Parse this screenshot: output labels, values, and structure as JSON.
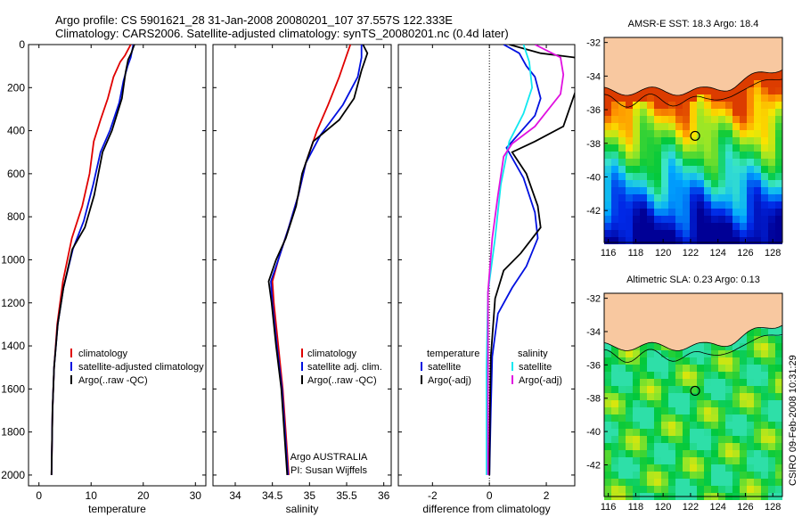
{
  "header": {
    "line1": "Argo profile: CS 5901621_28 31-Jan-2008 20080201_107 37.557S 122.333E",
    "line2": "Climatology: CARS2006. Satellite-adjusted climatology: synTS_20080201.nc (0.4d later)"
  },
  "credit": "CSIRO 09-Feb-2008 10:31:29",
  "colors": {
    "climatology": "#e00000",
    "satellite": "#0010e0",
    "argo": "#000000",
    "cyan": "#10e8f0",
    "magenta": "#e010e0",
    "land": "#f8c8a0"
  },
  "chart_data": [
    {
      "type": "line",
      "id": "temperature",
      "xlabel": "temperature",
      "ylabel": "",
      "xlim": [
        -2,
        32
      ],
      "ylim": [
        2050,
        0
      ],
      "y_inverted": true,
      "xticks": [
        0,
        10,
        20,
        30
      ],
      "yticks": [
        0,
        200,
        400,
        600,
        800,
        1000,
        1200,
        1400,
        1600,
        1800,
        2000
      ],
      "series": [
        {
          "name": "climatology",
          "color": "#e00000",
          "points": [
            [
              17.6,
              0
            ],
            [
              16.5,
              50
            ],
            [
              15.6,
              80
            ],
            [
              14.3,
              150
            ],
            [
              13.2,
              250
            ],
            [
              11.8,
              350
            ],
            [
              10.5,
              450
            ],
            [
              9.7,
              600
            ],
            [
              8.3,
              750
            ],
            [
              6.3,
              900
            ],
            [
              4.6,
              1100
            ],
            [
              3.5,
              1300
            ],
            [
              2.9,
              1500
            ],
            [
              2.6,
              1700
            ],
            [
              2.4,
              2000
            ]
          ]
        },
        {
          "name": "satellite-adjusted climatology",
          "color": "#0010e0",
          "points": [
            [
              18.1,
              0
            ],
            [
              17.6,
              60
            ],
            [
              17.0,
              100
            ],
            [
              16.2,
              170
            ],
            [
              15.4,
              270
            ],
            [
              13.6,
              400
            ],
            [
              11.8,
              500
            ],
            [
              10.4,
              650
            ],
            [
              8.6,
              820
            ],
            [
              6.5,
              950
            ],
            [
              4.7,
              1130
            ],
            [
              3.6,
              1300
            ],
            [
              2.9,
              1500
            ],
            [
              2.6,
              1700
            ],
            [
              2.4,
              2000
            ]
          ]
        },
        {
          "name": "Argo(..raw -QC)",
          "color": "#000000",
          "points": [
            [
              18.3,
              0
            ],
            [
              17.7,
              40
            ],
            [
              17.1,
              70
            ],
            [
              16.6,
              130
            ],
            [
              15.9,
              250
            ],
            [
              14.0,
              400
            ],
            [
              12.2,
              500
            ],
            [
              10.6,
              700
            ],
            [
              8.8,
              850
            ],
            [
              6.4,
              950
            ],
            [
              4.7,
              1130
            ],
            [
              3.6,
              1300
            ],
            [
              2.9,
              1500
            ],
            [
              2.6,
              1700
            ],
            [
              2.4,
              2000
            ]
          ]
        }
      ],
      "legend": [
        "climatology",
        "satellite-adjusted climatology",
        "Argo(..raw -QC)"
      ]
    },
    {
      "type": "line",
      "id": "salinity",
      "xlabel": "salinity",
      "ylabel": "",
      "xlim": [
        33.7,
        36.1
      ],
      "ylim": [
        2050,
        0
      ],
      "y_inverted": true,
      "xticks": [
        34,
        34.5,
        35,
        35.5,
        36
      ],
      "series": [
        {
          "name": "climatology",
          "color": "#e00000",
          "points": [
            [
              35.55,
              0
            ],
            [
              35.5,
              50
            ],
            [
              35.4,
              150
            ],
            [
              35.25,
              280
            ],
            [
              35.1,
              400
            ],
            [
              34.95,
              550
            ],
            [
              34.85,
              700
            ],
            [
              34.72,
              850
            ],
            [
              34.58,
              1000
            ],
            [
              34.5,
              1100
            ],
            [
              34.52,
              1200
            ],
            [
              34.58,
              1400
            ],
            [
              34.64,
              1600
            ],
            [
              34.68,
              1800
            ],
            [
              34.72,
              2000
            ]
          ]
        },
        {
          "name": "satellite adj. clim.",
          "color": "#0010e0",
          "points": [
            [
              35.7,
              0
            ],
            [
              35.7,
              60
            ],
            [
              35.65,
              150
            ],
            [
              35.45,
              280
            ],
            [
              35.15,
              420
            ],
            [
              34.95,
              550
            ],
            [
              34.85,
              700
            ],
            [
              34.72,
              850
            ],
            [
              34.58,
              1000
            ],
            [
              34.48,
              1100
            ],
            [
              34.5,
              1200
            ],
            [
              34.56,
              1400
            ],
            [
              34.63,
              1600
            ],
            [
              34.67,
              1800
            ],
            [
              34.71,
              2000
            ]
          ]
        },
        {
          "name": "Argo(..raw -QC)",
          "color": "#000000",
          "points": [
            [
              35.72,
              0
            ],
            [
              35.78,
              40
            ],
            [
              35.7,
              120
            ],
            [
              35.6,
              250
            ],
            [
              35.4,
              350
            ],
            [
              35.05,
              450
            ],
            [
              34.9,
              600
            ],
            [
              34.82,
              750
            ],
            [
              34.68,
              900
            ],
            [
              34.55,
              1000
            ],
            [
              34.45,
              1100
            ],
            [
              34.49,
              1200
            ],
            [
              34.55,
              1400
            ],
            [
              34.62,
              1600
            ],
            [
              34.66,
              1800
            ],
            [
              34.7,
              2000
            ]
          ]
        }
      ],
      "legend": [
        "climatology",
        "satellite adj. clim.",
        "Argo(..raw -QC)"
      ],
      "annotation": [
        "Argo AUSTRALIA",
        "PI: Susan Wijffels"
      ]
    },
    {
      "type": "line",
      "id": "difference",
      "xlabel": "difference from climatology",
      "ylabel": "",
      "xlim": [
        -3.2,
        3.0
      ],
      "ylim": [
        2050,
        0
      ],
      "y_inverted": true,
      "xticks": [
        -2,
        0,
        2
      ],
      "zero_line": "dotted",
      "series": [
        {
          "name": "temperature satellite",
          "color": "#0010e0",
          "points": [
            [
              0.5,
              0
            ],
            [
              1.05,
              40
            ],
            [
              1.3,
              100
            ],
            [
              1.6,
              150
            ],
            [
              1.8,
              250
            ],
            [
              1.6,
              330
            ],
            [
              0.6,
              480
            ],
            [
              1.2,
              620
            ],
            [
              1.6,
              780
            ],
            [
              1.7,
              900
            ],
            [
              1.3,
              1030
            ],
            [
              0.8,
              1130
            ],
            [
              0.3,
              1250
            ],
            [
              0.1,
              1450
            ],
            [
              0.05,
              1700
            ],
            [
              0.0,
              2000
            ]
          ]
        },
        {
          "name": "temperature Argo(-adj)",
          "color": "#000000",
          "points": [
            [
              0.7,
              0
            ],
            [
              1.8,
              40
            ],
            [
              3.0,
              60
            ],
            [
              3.2,
              150
            ],
            [
              2.6,
              380
            ],
            [
              1.6,
              450
            ],
            [
              0.8,
              500
            ],
            [
              1.3,
              600
            ],
            [
              1.7,
              750
            ],
            [
              1.8,
              850
            ],
            [
              1.1,
              970
            ],
            [
              0.5,
              1050
            ],
            [
              0.2,
              1180
            ],
            [
              0.05,
              1450
            ],
            [
              0.02,
              1700
            ],
            [
              0.0,
              2000
            ]
          ]
        },
        {
          "name": "salinity satellite",
          "color": "#10e8f0",
          "points": [
            [
              1.2,
              0
            ],
            [
              1.4,
              80
            ],
            [
              1.5,
              200
            ],
            [
              1.2,
              320
            ],
            [
              0.7,
              450
            ],
            [
              0.4,
              650
            ],
            [
              0.2,
              900
            ],
            [
              -0.05,
              1150
            ],
            [
              -0.1,
              1500
            ],
            [
              -0.1,
              1800
            ],
            [
              -0.1,
              2000
            ]
          ]
        },
        {
          "name": "salinity Argo(-adj)",
          "color": "#e010e0",
          "points": [
            [
              1.6,
              0
            ],
            [
              2.5,
              60
            ],
            [
              2.6,
              140
            ],
            [
              2.5,
              230
            ],
            [
              1.6,
              380
            ],
            [
              0.8,
              460
            ],
            [
              0.5,
              520
            ],
            [
              0.3,
              700
            ],
            [
              0.1,
              900
            ],
            [
              -0.05,
              1150
            ],
            [
              -0.05,
              1500
            ],
            [
              -0.05,
              2000
            ]
          ]
        }
      ],
      "legend_headers": [
        "temperature",
        "salinity"
      ],
      "legend": [
        "satellite",
        "Argo(-adj)",
        "satellite",
        "Argo(-adj)"
      ]
    }
  ],
  "maps": [
    {
      "title": "AMSR-E SST: 18.3  Argo: 18.4",
      "xticks": [
        116,
        118,
        120,
        122,
        124,
        126,
        128
      ],
      "yticks": [
        -32,
        -34,
        -36,
        -38,
        -40,
        -42
      ],
      "xlim": [
        115.7,
        128.7
      ],
      "ylim": [
        -43.9,
        -31.7
      ],
      "marker": {
        "lon": 122.333,
        "lat": -37.557
      }
    },
    {
      "title": "Altimetric SLA: 0.23  Argo: 0.13",
      "xticks": [
        116,
        118,
        120,
        122,
        124,
        126,
        128
      ],
      "yticks": [
        -32,
        -34,
        -36,
        -38,
        -40,
        -42
      ],
      "xlim": [
        115.7,
        128.7
      ],
      "ylim": [
        -43.9,
        -31.7
      ],
      "marker": {
        "lon": 122.333,
        "lat": -37.557
      }
    }
  ]
}
